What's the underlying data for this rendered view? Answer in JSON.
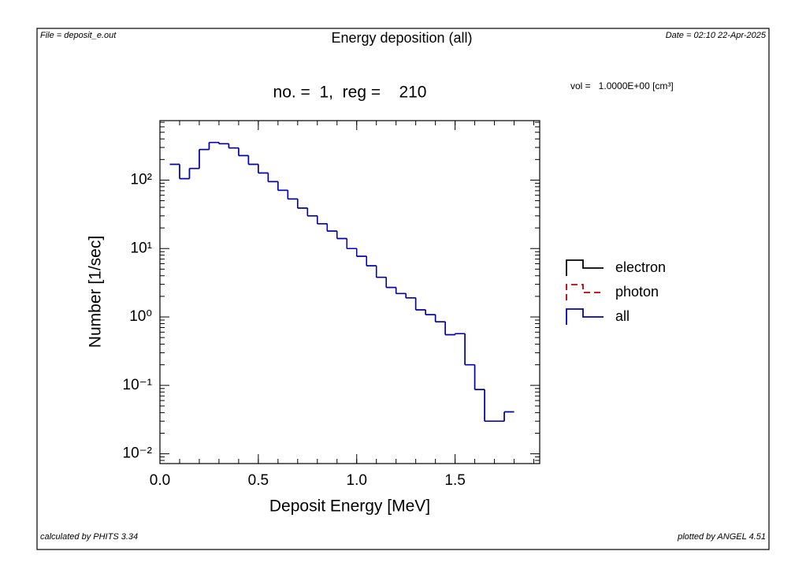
{
  "header": {
    "file": "File = deposit_e.out",
    "date": "Date = 02:10 22-Apr-2025",
    "subtitle": "no. =  1,  reg =    210",
    "volume": "vol =   1.0000E+00 [cm³]"
  },
  "footer": {
    "left": "calculated by PHITS 3.34",
    "right": "plotted by ANGEL 4.51"
  },
  "chart_data": {
    "type": "histogram",
    "title": "Energy deposition (all)",
    "x_label": "Deposit Energy [MeV]",
    "y_label": "Number [1/sec]",
    "bins": [
      0.05,
      0.1,
      0.15,
      0.2,
      0.25,
      0.3,
      0.35,
      0.4,
      0.45,
      0.5,
      0.55,
      0.6,
      0.65,
      0.7,
      0.75,
      0.8,
      0.85,
      0.9,
      0.95,
      1.0,
      1.05,
      1.1,
      1.15,
      1.2,
      1.25,
      1.3,
      1.35,
      1.4,
      1.45,
      1.5,
      1.55,
      1.6,
      1.65,
      1.7,
      1.75,
      1.8
    ],
    "series": [
      {
        "name": "electron",
        "color": "#000000",
        "dash": false,
        "values": [
          170,
          105,
          148,
          280,
          355,
          340,
          295,
          228,
          170,
          127,
          95,
          71,
          53,
          39,
          30,
          23,
          18,
          14,
          10,
          7.7,
          5.6,
          3.8,
          2.7,
          2.2,
          1.9,
          1.27,
          1.08,
          0.85,
          0.55,
          0.57,
          0.2,
          0.087,
          0.03,
          0.03,
          0.041
        ]
      },
      {
        "name": "photon",
        "color": "#c00000",
        "dash": true,
        "values": [
          null,
          null,
          null,
          null,
          null,
          null,
          null,
          null,
          null,
          null,
          null,
          null,
          null,
          null,
          null,
          null,
          null,
          null,
          null,
          null,
          null,
          null,
          null,
          null,
          null,
          null,
          null,
          null,
          null,
          null,
          null,
          null,
          null,
          null,
          null
        ]
      },
      {
        "name": "all",
        "color": "#0000c0",
        "dash": false,
        "values": [
          170,
          105,
          148,
          280,
          355,
          340,
          295,
          228,
          170,
          127,
          95,
          71,
          53,
          39,
          30,
          23,
          18,
          14,
          10,
          7.7,
          5.6,
          3.8,
          2.7,
          2.2,
          1.9,
          1.27,
          1.08,
          0.85,
          0.55,
          0.57,
          0.2,
          0.087,
          0.03,
          0.03,
          0.041
        ]
      }
    ],
    "xlim": [
      0,
      1.93
    ],
    "xticks": [
      {
        "value": 0,
        "label": "0.0"
      },
      0.5,
      {
        "value": 1,
        "label": "1.0"
      },
      1.5
    ],
    "ylim": [
      0.0072,
      740
    ],
    "log_y": true,
    "yticks": [
      {
        "value": 0.01,
        "label": "10⁻²"
      },
      {
        "value": 0.1,
        "label": "10⁻¹"
      },
      {
        "value": 1,
        "label": "10⁰"
      },
      {
        "value": 10,
        "label": "10¹"
      },
      {
        "value": 100,
        "label": "10²"
      }
    ],
    "legend": "right"
  }
}
